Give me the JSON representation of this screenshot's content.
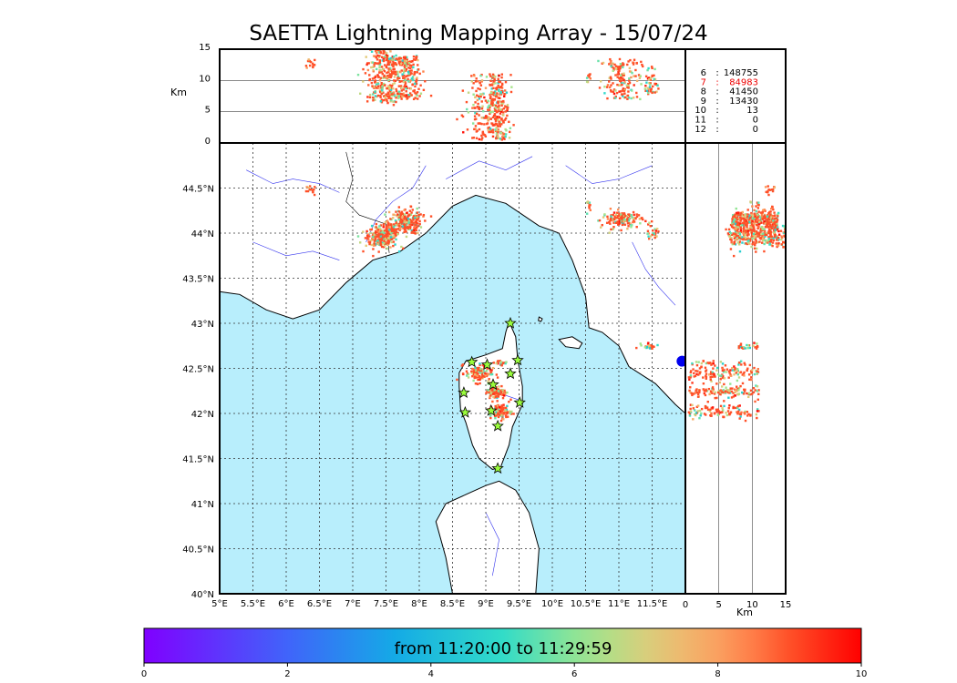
{
  "chart_data": {
    "type": "scatter",
    "title": "SAETTA Lightning Mapping Array - 15/07/24",
    "map_panel": {
      "lon_range": [
        5,
        12
      ],
      "lat_range": [
        40,
        45
      ],
      "lon_ticks": [
        "5°E",
        "5.5°E",
        "6°E",
        "6.5°E",
        "7°E",
        "7.5°E",
        "8°E",
        "8.5°E",
        "9°E",
        "9.5°E",
        "10°E",
        "10.5°E",
        "11°E",
        "11.5°E"
      ],
      "lat_ticks": [
        "40°N",
        "40.5°N",
        "41°N",
        "41.5°N",
        "42°N",
        "42.5°N",
        "43°N",
        "43.5°N",
        "44°N",
        "44.5°N"
      ],
      "grid": true
    },
    "altitude_panel_top": {
      "ylabel": "Km",
      "ylim": [
        0,
        15
      ],
      "y_ticks": [
        "0",
        "5",
        "10",
        "15"
      ]
    },
    "altitude_panel_side": {
      "xlabel": "Km",
      "xlim": [
        0,
        15
      ],
      "x_ticks": [
        "0",
        "5",
        "10",
        "15"
      ]
    },
    "station_counts": [
      {
        "stations": "6",
        "count": "148755",
        "highlight": false
      },
      {
        "stations": "7",
        "count": "84983",
        "highlight": true
      },
      {
        "stations": "8",
        "count": "41450",
        "highlight": false
      },
      {
        "stations": "9",
        "count": "13430",
        "highlight": false
      },
      {
        "stations": "10",
        "count": "13",
        "highlight": false
      },
      {
        "stations": "11",
        "count": "0",
        "highlight": false
      },
      {
        "stations": "12",
        "count": "0",
        "highlight": false
      }
    ],
    "sensor_stations": [
      [
        9.37,
        43.0
      ],
      [
        9.48,
        42.59
      ],
      [
        9.37,
        42.44
      ],
      [
        9.51,
        42.12
      ],
      [
        9.02,
        42.54
      ],
      [
        8.79,
        42.57
      ],
      [
        8.67,
        42.23
      ],
      [
        8.69,
        42.01
      ],
      [
        9.11,
        42.32
      ],
      [
        9.08,
        42.03
      ],
      [
        9.18,
        41.86
      ],
      [
        9.18,
        41.39
      ]
    ],
    "colorbar": {
      "label": "from 11:20:00 to 11:29:59",
      "ticks": [
        "0",
        "2",
        "4",
        "6",
        "8",
        "10"
      ],
      "range": [
        0,
        10
      ]
    },
    "clusters": [
      {
        "lon": 7.43,
        "lat": 43.95,
        "slon": 0.12,
        "slat": 0.06,
        "n": 240,
        "zlo": 6.5,
        "zhi": 15.5
      },
      {
        "lon": 7.8,
        "lat": 44.13,
        "slon": 0.12,
        "slat": 0.07,
        "n": 220,
        "zlo": 7,
        "zhi": 14
      },
      {
        "lon": 7.57,
        "lat": 44.03,
        "slon": 0.05,
        "slat": 0.04,
        "n": 50,
        "zlo": 6,
        "zhi": 14
      },
      {
        "lon": 6.37,
        "lat": 44.47,
        "slon": 0.05,
        "slat": 0.03,
        "n": 14,
        "zlo": 12,
        "zhi": 13.5
      },
      {
        "lon": 10.55,
        "lat": 44.3,
        "slon": 0.02,
        "slat": 0.03,
        "n": 10,
        "zlo": 9,
        "zhi": 11
      },
      {
        "lon": 11.05,
        "lat": 44.15,
        "slon": 0.15,
        "slat": 0.05,
        "n": 150,
        "zlo": 7,
        "zhi": 13.5
      },
      {
        "lon": 11.5,
        "lat": 44.0,
        "slon": 0.05,
        "slat": 0.03,
        "n": 20,
        "zlo": 8,
        "zhi": 12
      },
      {
        "lon": 11.45,
        "lat": 42.75,
        "slon": 0.07,
        "slat": 0.02,
        "n": 25,
        "zlo": 8,
        "zhi": 11
      },
      {
        "lon": 8.9,
        "lat": 42.45,
        "slon": 0.1,
        "slat": 0.05,
        "n": 120,
        "zlo": 0.5,
        "zhi": 11
      },
      {
        "lon": 9.15,
        "lat": 42.24,
        "slon": 0.08,
        "slat": 0.04,
        "n": 120,
        "zlo": 0.5,
        "zhi": 11
      },
      {
        "lon": 9.22,
        "lat": 42.02,
        "slon": 0.08,
        "slat": 0.04,
        "n": 100,
        "zlo": 0.5,
        "zhi": 11
      },
      {
        "lon": 9.22,
        "lat": 42.56,
        "slon": 0.05,
        "slat": 0.02,
        "n": 20,
        "zlo": 1,
        "zhi": 9
      }
    ]
  }
}
